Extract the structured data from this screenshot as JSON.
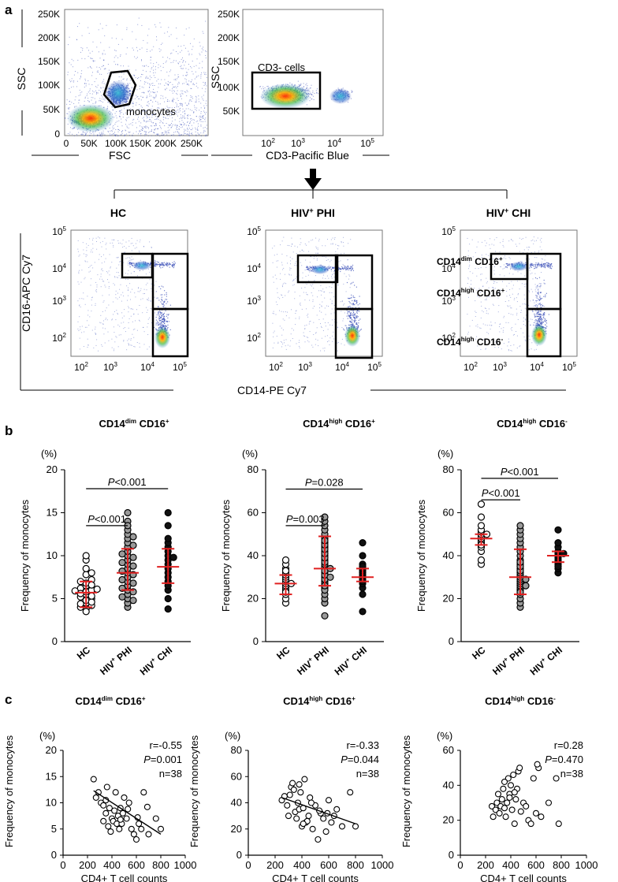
{
  "panel_labels": {
    "a": "a",
    "b": "b",
    "c": "c"
  },
  "colors": {
    "dot": "#3a4fb8",
    "core": "#ff8a00",
    "mid": "#2bb04a",
    "red": "#e02020",
    "gray": "#9a9a9a"
  },
  "flow": {
    "p1": {
      "ylabel": "SSC",
      "xlabel": "FSC",
      "yticks": [
        "250K",
        "200K",
        "150K",
        "100K",
        "50K",
        "0"
      ],
      "xticks": [
        "0",
        "50K",
        "100K",
        "150K",
        "200K",
        "250K"
      ],
      "gate_label": "monocytes"
    },
    "p2": {
      "ylabel": "SSC",
      "xlabel": "CD3-Pacific Blue",
      "yticks": [
        "250K",
        "200K",
        "150K",
        "100K",
        "50K"
      ],
      "xticks": [
        "10",
        "10",
        "10",
        "10"
      ],
      "xexp": [
        "2",
        "3",
        "4",
        "5"
      ],
      "gate_label": "CD3- cells"
    },
    "groups": [
      {
        "pre": "HC",
        "sup": "",
        "post": ""
      },
      {
        "pre": "HIV",
        "sup": "+",
        "post": " PHI"
      },
      {
        "pre": "HIV",
        "sup": "+",
        "post": " CHI"
      }
    ],
    "row_ylabel": "CD16-APC Cy7",
    "row_xlabel": "CD14-PE Cy7",
    "log_base": "10",
    "log_exp": [
      "2",
      "3",
      "4",
      "5"
    ],
    "subsets": [
      {
        "a": "CD14",
        "asup": "dim",
        "b": " CD16",
        "bsup": "+"
      },
      {
        "a": "CD14",
        "asup": "high",
        "b": " CD16",
        "bsup": "+"
      },
      {
        "a": "CD14",
        "asup": "high",
        "b": " CD16",
        "bsup": "-"
      }
    ]
  },
  "chart_data": [
    {
      "type": "scatter",
      "panel": "b",
      "title_parts": {
        "a": "CD14",
        "asup": "dim",
        "b": " CD16",
        "bsup": "+"
      },
      "unit": "(%)",
      "ylabel": "Frequency of monocytes",
      "ylim": [
        0,
        20
      ],
      "yticks": [
        0,
        5,
        10,
        15,
        20
      ],
      "categories": [
        {
          "pre": "HC",
          "sup": "",
          "post": ""
        },
        {
          "pre": "HIV",
          "sup": "+",
          "post": " PHI"
        },
        {
          "pre": "HIV",
          "sup": "+",
          "post": " CHI"
        }
      ],
      "fills": [
        "#ffffff",
        "#9a9a9a",
        "#111111"
      ],
      "series": [
        {
          "values": [
            3.8,
            4.2,
            4.5,
            4.8,
            5.0,
            5.2,
            5.5,
            5.8,
            6.0,
            6.2,
            6.5,
            6.8,
            7.2,
            7.8,
            8.5,
            9.5,
            10.0,
            3.5,
            4.0,
            4.6,
            5.3,
            5.6,
            6.1,
            6.6,
            7.0,
            8.0,
            5.9,
            4.4
          ],
          "median": 5.7,
          "q1": 4.0,
          "q3": 7.0
        },
        {
          "values": [
            4.0,
            4.5,
            5.0,
            5.5,
            6.0,
            6.5,
            7.0,
            7.5,
            8.0,
            8.5,
            9.0,
            9.5,
            10.0,
            10.5,
            11.0,
            11.5,
            12.0,
            12.5,
            13.0,
            14.0,
            15.0,
            5.8,
            6.8,
            7.8,
            8.8,
            9.8,
            6.2,
            7.2,
            8.2,
            9.2,
            10.2,
            4.8,
            5.2,
            11.2,
            12.2,
            13.5
          ],
          "median": 8.0,
          "q1": 6.0,
          "q3": 10.8
        },
        {
          "values": [
            3.8,
            5.0,
            6.0,
            7.0,
            7.5,
            8.0,
            8.5,
            9.0,
            9.5,
            10.0,
            10.5,
            11.0,
            11.5,
            12.0,
            13.5,
            15.0,
            6.5,
            9.8
          ],
          "median": 8.7,
          "q1": 6.8,
          "q3": 10.8
        }
      ],
      "brackets": [
        {
          "from": 0,
          "to": 1,
          "p": "P",
          "rest": "<0.001",
          "y": 13.5
        },
        {
          "from": 0,
          "to": 2,
          "p": "P",
          "rest": "<0.001",
          "y": 17.8
        }
      ]
    },
    {
      "type": "scatter",
      "panel": "b",
      "title_parts": {
        "a": "CD14",
        "asup": "high",
        "b": " CD16",
        "bsup": "+"
      },
      "unit": "(%)",
      "ylabel": "Frequency of monocytes",
      "ylim": [
        0,
        80
      ],
      "yticks": [
        0,
        20,
        40,
        60,
        80
      ],
      "categories": [
        {
          "pre": "HC",
          "sup": "",
          "post": ""
        },
        {
          "pre": "HIV",
          "sup": "+",
          "post": " PHI"
        },
        {
          "pre": "HIV",
          "sup": "+",
          "post": " CHI"
        }
      ],
      "fills": [
        "#ffffff",
        "#9a9a9a",
        "#111111"
      ],
      "series": [
        {
          "values": [
            18,
            20,
            22,
            24,
            25,
            26,
            27,
            28,
            29,
            30,
            31,
            32,
            34,
            36,
            38,
            23,
            27,
            33
          ],
          "median": 27,
          "q1": 22,
          "q3": 31
        },
        {
          "values": [
            12,
            18,
            20,
            22,
            25,
            28,
            30,
            32,
            34,
            35,
            36,
            38,
            40,
            42,
            44,
            46,
            48,
            50,
            52,
            54,
            56,
            58,
            24,
            27,
            29,
            31,
            33,
            37,
            39,
            41,
            43,
            45,
            47,
            26,
            30,
            34
          ],
          "median": 34,
          "q1": 26,
          "q3": 49
        },
        {
          "values": [
            14,
            22,
            25,
            27,
            29,
            30,
            31,
            32,
            33,
            34,
            36,
            40,
            46,
            28,
            35
          ],
          "median": 30,
          "q1": 28,
          "q3": 34
        }
      ],
      "brackets": [
        {
          "from": 0,
          "to": 1,
          "p": "P",
          "rest": "=0.003",
          "y": 54
        },
        {
          "from": 0,
          "to": 2,
          "p": "P",
          "rest": "=0.028",
          "y": 71
        }
      ]
    },
    {
      "type": "scatter",
      "panel": "b",
      "title_parts": {
        "a": "CD14",
        "asup": "high",
        "b": " CD16",
        "bsup": "-"
      },
      "unit": "(%)",
      "ylabel": "Frequency of monocytes",
      "ylim": [
        0,
        80
      ],
      "yticks": [
        0,
        20,
        40,
        60,
        80
      ],
      "categories": [
        {
          "pre": "HC",
          "sup": "",
          "post": ""
        },
        {
          "pre": "HIV",
          "sup": "+",
          "post": " PHI"
        },
        {
          "pre": "HIV",
          "sup": "+",
          "post": " CHI"
        }
      ],
      "fills": [
        "#ffffff",
        "#9a9a9a",
        "#111111"
      ],
      "series": [
        {
          "values": [
            36,
            38,
            42,
            44,
            46,
            47,
            48,
            49,
            50,
            51,
            52,
            54,
            58,
            64,
            45,
            50
          ],
          "median": 48,
          "q1": 45,
          "q3": 50
        },
        {
          "values": [
            16,
            18,
            20,
            22,
            24,
            25,
            26,
            27,
            28,
            29,
            30,
            31,
            32,
            34,
            36,
            38,
            40,
            42,
            44,
            46,
            48,
            50,
            52,
            54,
            23,
            26,
            29,
            33,
            35,
            37
          ],
          "median": 30,
          "q1": 22,
          "q3": 43
        },
        {
          "values": [
            32,
            34,
            36,
            37,
            38,
            39,
            40,
            41,
            42,
            44,
            46,
            52,
            35,
            41
          ],
          "median": 40,
          "q1": 37,
          "q3": 42
        }
      ],
      "brackets": [
        {
          "from": 0,
          "to": 1,
          "p": "P",
          "rest": "<0.001",
          "y": 66
        },
        {
          "from": 0,
          "to": 2,
          "p": "P",
          "rest": "<0.001",
          "y": 76
        }
      ]
    },
    {
      "type": "scatter",
      "panel": "c",
      "title_parts": {
        "a": "CD14",
        "asup": "dim",
        "b": " CD16",
        "bsup": "+"
      },
      "unit": "(%)",
      "ylabel": "Frequency of monocytes",
      "xlabel": "CD4+ T cell counts",
      "xlim": [
        0,
        1000
      ],
      "xticks": [
        0,
        200,
        400,
        600,
        800,
        1000
      ],
      "ylim": [
        0,
        20
      ],
      "yticks": [
        0,
        5,
        10,
        15,
        20
      ],
      "stats": {
        "r": "r=-0.55",
        "p": "P",
        "p_rest": "=0.001",
        "n": "n=38"
      },
      "x": [
        250,
        270,
        290,
        310,
        330,
        350,
        360,
        380,
        400,
        410,
        420,
        430,
        440,
        450,
        460,
        470,
        480,
        490,
        500,
        520,
        540,
        560,
        580,
        600,
        620,
        640,
        660,
        700,
        760,
        800,
        330,
        370,
        390,
        470,
        530,
        610,
        690,
        350
      ],
      "y": [
        14.5,
        11,
        12,
        10,
        9.5,
        8,
        13,
        9,
        7,
        6.5,
        8.5,
        12,
        6,
        7.5,
        5,
        9,
        6,
        8,
        11,
        7,
        10,
        5,
        4,
        3,
        6,
        5,
        12,
        4,
        7,
        5,
        6.5,
        5.5,
        4.5,
        6.8,
        8.8,
        7.2,
        9.2,
        10.5
      ],
      "fit": {
        "x0": 250,
        "y0": 12.3,
        "x1": 800,
        "y1": 4.0
      }
    },
    {
      "type": "scatter",
      "panel": "c",
      "title_parts": {
        "a": "CD14",
        "asup": "high",
        "b": " CD16",
        "bsup": "+"
      },
      "unit": "(%)",
      "ylabel": "Frequency of monocytes",
      "xlabel": "CD4+ T cell counts",
      "xlim": [
        0,
        1000
      ],
      "xticks": [
        0,
        200,
        400,
        600,
        800,
        1000
      ],
      "ylim": [
        0,
        80
      ],
      "yticks": [
        0,
        20,
        40,
        60,
        80
      ],
      "stats": {
        "r": "r=-0.33",
        "p": "P",
        "p_rest": "=0.044",
        "n": "n=38"
      },
      "x": [
        250,
        270,
        290,
        300,
        320,
        330,
        350,
        360,
        370,
        380,
        390,
        400,
        410,
        420,
        430,
        450,
        460,
        480,
        500,
        520,
        540,
        560,
        580,
        600,
        620,
        640,
        660,
        700,
        760,
        800,
        340,
        440,
        470,
        530,
        310,
        410,
        590,
        380
      ],
      "y": [
        42,
        45,
        38,
        30,
        52,
        55,
        33,
        28,
        40,
        35,
        48,
        22,
        36,
        58,
        25,
        30,
        44,
        20,
        38,
        12,
        32,
        28,
        18,
        42,
        25,
        30,
        35,
        22,
        48,
        22,
        50,
        26,
        40,
        34,
        46,
        24,
        32,
        54
      ],
      "fit": {
        "x0": 250,
        "y0": 44,
        "x1": 800,
        "y1": 24
      }
    },
    {
      "type": "scatter",
      "panel": "c",
      "title_parts": {
        "a": "CD14",
        "asup": "high",
        "b": " CD16",
        "bsup": "-"
      },
      "unit": "(%)",
      "ylabel": "Frequency of monocytes",
      "xlabel": "CD4+ T cell counts",
      "xlim": [
        0,
        1000
      ],
      "xticks": [
        0,
        200,
        400,
        600,
        800,
        1000
      ],
      "ylim": [
        0,
        60
      ],
      "yticks": [
        0,
        20,
        40,
        60
      ],
      "stats": {
        "r": "r=0.28",
        "p": "P",
        "p_rest": "=0.470",
        "n": "n=38"
      },
      "x": [
        250,
        260,
        280,
        290,
        300,
        310,
        320,
        330,
        340,
        350,
        360,
        370,
        380,
        390,
        400,
        410,
        420,
        430,
        440,
        450,
        460,
        470,
        480,
        500,
        520,
        540,
        560,
        580,
        600,
        620,
        640,
        700,
        760,
        780,
        350,
        390,
        430,
        610
      ],
      "y": [
        28,
        22,
        26,
        30,
        35,
        24,
        28,
        32,
        38,
        27,
        22,
        30,
        44,
        35,
        40,
        26,
        46,
        18,
        32,
        38,
        48,
        50,
        25,
        30,
        28,
        20,
        18,
        44,
        24,
        50,
        22,
        30,
        44,
        18,
        42,
        33,
        36,
        52
      ]
    }
  ]
}
